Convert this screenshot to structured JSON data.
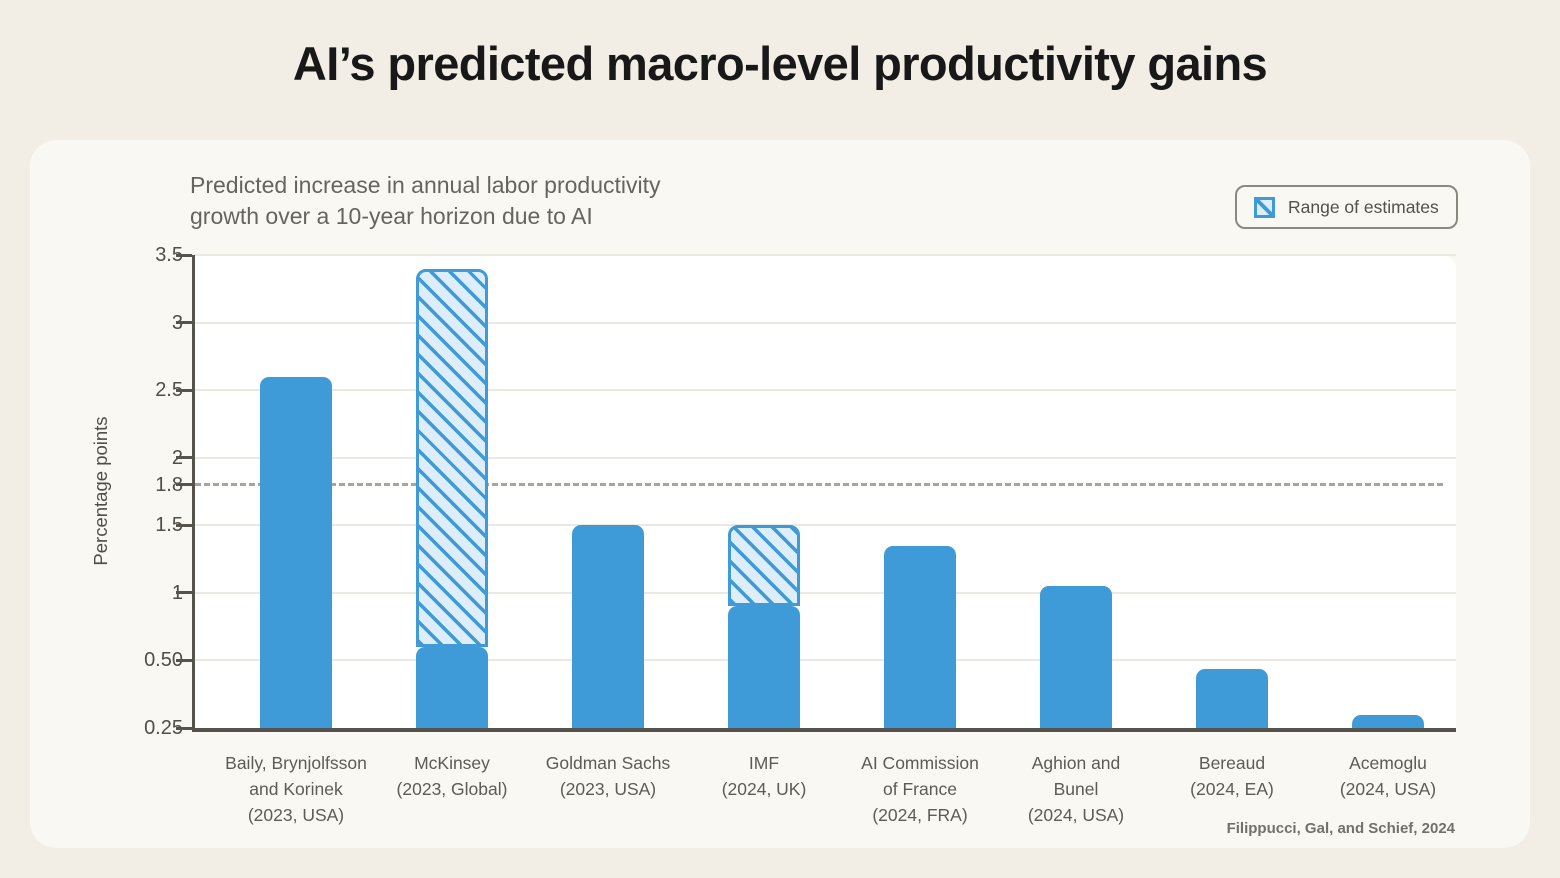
{
  "page": {
    "title": "AI’s predicted macro-level productivity gains"
  },
  "chart": {
    "subtitle": "Predicted increase in annual labor productivity\ngrowth over a 10-year horizon due to AI",
    "legend_label": "Range of estimates",
    "ylabel": "Percentage points",
    "source": "Filippucci, Gal, and Schief, 2024"
  },
  "colors": {
    "bar_blue": "#3f9bd8",
    "hatch_fill": "#ddeefa",
    "page_background": "#f2ede5",
    "card_background": "#faf8f3",
    "plot_background": "#ffffff",
    "gridline": "#ebe9e0",
    "axis": "#55534c",
    "dashed_reference": "#a7a69e"
  },
  "chart_data": {
    "type": "bar",
    "title": "AI’s predicted macro-level productivity gains",
    "subtitle": "Predicted increase in annual labor productivity growth over a 10-year horizon due to AI",
    "ylabel": "Percentage points",
    "xlabel": "",
    "legend": [
      {
        "label": "Range of estimates",
        "swatch": "blue-diagonal-hatch"
      }
    ],
    "legend_position": "top-right",
    "grid": true,
    "source": "Filippucci, Gal, and Schief, 2024",
    "y_axis": {
      "tick_labels": [
        "0.25",
        "0.50",
        "1",
        "1.5",
        "1.8",
        "2",
        "2.5",
        "3",
        "3.5"
      ],
      "base_tick_values": [
        0.25,
        0.5,
        1,
        1.5,
        2,
        2.5,
        3,
        3.5
      ],
      "baseline_value": 0.25,
      "scale_note": "labeled ticks are equally spaced visually; 1.8 is a dashed reference line between 1.5 and 2",
      "dashed_reference_value": 1.8
    },
    "categories": [
      "Baily, Brynjolfsson and Korinek (2023, USA)",
      "McKinsey (2023, Global)",
      "Goldman Sachs (2023, USA)",
      "IMF (2024, UK)",
      "AI Commission of France (2024, FRA)",
      "Aghion and Bunel (2024, USA)",
      "Bereaud (2024, EA)",
      "Acemoglu (2024, USA)"
    ],
    "bars": [
      {
        "label_lines": [
          "Baily, Brynjolfsson",
          "and Korinek",
          "(2023, USA)"
        ],
        "value": 2.6
      },
      {
        "label_lines": [
          "McKinsey",
          "(2023, Global)"
        ],
        "value": 0.6,
        "range_high": 3.4
      },
      {
        "label_lines": [
          "Goldman Sachs",
          "(2023, USA)"
        ],
        "value": 1.5
      },
      {
        "label_lines": [
          "IMF",
          "(2024, UK)"
        ],
        "value": 0.9,
        "range_high": 1.5
      },
      {
        "label_lines": [
          "AI Commission",
          "of France",
          "(2024, FRA)"
        ],
        "value": 1.35
      },
      {
        "label_lines": [
          "Aghion and",
          "Bunel",
          "(2024, USA)"
        ],
        "value": 1.05
      },
      {
        "label_lines": [
          "Bereaud",
          "(2024, EA)"
        ],
        "value": 0.47
      },
      {
        "label_lines": [
          "Acemoglu",
          "(2024, USA)"
        ],
        "value": 0.3
      }
    ]
  }
}
